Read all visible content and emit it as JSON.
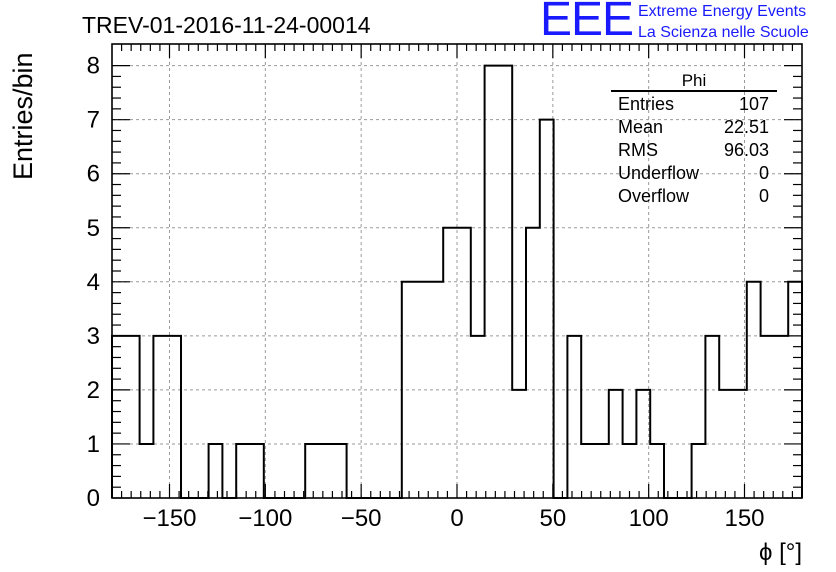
{
  "chart_data": {
    "type": "histogram",
    "title": "TREV-01-2016-11-24-00014",
    "xlabel": "ϕ [°]",
    "ylabel": "Entries/bin",
    "xlim": [
      -180,
      180
    ],
    "ylim": [
      0,
      8.4
    ],
    "bin_width": 14.4,
    "x_ticks": [
      -150,
      -100,
      -50,
      0,
      50,
      100,
      150
    ],
    "x_tick_labels": [
      "−150",
      "−100",
      "−50",
      "0",
      "50",
      "100",
      "150"
    ],
    "y_ticks": [
      0,
      1,
      2,
      3,
      4,
      5,
      6,
      7,
      8
    ],
    "y_tick_labels": [
      "0",
      "1",
      "2",
      "3",
      "4",
      "5",
      "6",
      "7",
      "8"
    ],
    "grid": true,
    "bins": [
      {
        "x0": -180,
        "x1": -165.6,
        "count": 3
      },
      {
        "x0": -165.6,
        "x1": -158.4,
        "count": 1
      },
      {
        "x0": -158.4,
        "x1": -144,
        "count": 3
      },
      {
        "x0": -144,
        "x1": -129.6,
        "count": 0
      },
      {
        "x0": -129.6,
        "x1": -122.4,
        "count": 1
      },
      {
        "x0": -122.4,
        "x1": -115.2,
        "count": 0
      },
      {
        "x0": -115.2,
        "x1": -100.8,
        "count": 1
      },
      {
        "x0": -100.8,
        "x1": -79.2,
        "count": 0
      },
      {
        "x0": -79.2,
        "x1": -57.6,
        "count": 1
      },
      {
        "x0": -57.6,
        "x1": -28.8,
        "count": 0
      },
      {
        "x0": -28.8,
        "x1": -7.2,
        "count": 4
      },
      {
        "x0": -7.2,
        "x1": 7.2,
        "count": 5
      },
      {
        "x0": 7.2,
        "x1": 14.4,
        "count": 3
      },
      {
        "x0": 14.4,
        "x1": 28.8,
        "count": 8
      },
      {
        "x0": 28.8,
        "x1": 36,
        "count": 2
      },
      {
        "x0": 36,
        "x1": 43.2,
        "count": 5
      },
      {
        "x0": 43.2,
        "x1": 50.4,
        "count": 7
      },
      {
        "x0": 50.4,
        "x1": 57.6,
        "count": 0
      },
      {
        "x0": 57.6,
        "x1": 64.8,
        "count": 3
      },
      {
        "x0": 64.8,
        "x1": 79.2,
        "count": 1
      },
      {
        "x0": 79.2,
        "x1": 86.4,
        "count": 2
      },
      {
        "x0": 86.4,
        "x1": 93.6,
        "count": 1
      },
      {
        "x0": 93.6,
        "x1": 100.8,
        "count": 2
      },
      {
        "x0": 100.8,
        "x1": 108,
        "count": 1
      },
      {
        "x0": 108,
        "x1": 122.4,
        "count": 0
      },
      {
        "x0": 122.4,
        "x1": 129.6,
        "count": 1
      },
      {
        "x0": 129.6,
        "x1": 136.8,
        "count": 3
      },
      {
        "x0": 136.8,
        "x1": 151.2,
        "count": 2
      },
      {
        "x0": 151.2,
        "x1": 158.4,
        "count": 4
      },
      {
        "x0": 158.4,
        "x1": 172.8,
        "count": 3
      },
      {
        "x0": 172.8,
        "x1": 180,
        "count": 4
      }
    ],
    "stats": {
      "name": "Phi",
      "rows": [
        {
          "label": "Entries",
          "value": "107"
        },
        {
          "label": "Mean",
          "value": "22.51"
        },
        {
          "label": "RMS",
          "value": "96.03"
        },
        {
          "label": "Underflow",
          "value": "0"
        },
        {
          "label": "Overflow",
          "value": "0"
        }
      ]
    }
  },
  "logo": {
    "mark": "EEE",
    "line1": "Extreme Energy Events",
    "line2": "La Scienza nelle Scuole",
    "color": "#1a1aff"
  }
}
